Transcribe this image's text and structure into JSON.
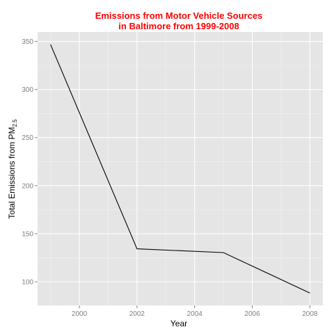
{
  "chart_data": {
    "type": "line",
    "title_line1": "Emissions from Motor Vehicle Sources",
    "title_line2": "in Baltimore from 1999-2008",
    "xlabel": "Year",
    "ylabel": {
      "main": "Total Emissions from PM",
      "subscript": "2.5"
    },
    "x": [
      1999,
      2002,
      2005,
      2008
    ],
    "series": [
      {
        "values": [
          346.8,
          134.3,
          130.4,
          88.3
        ]
      }
    ],
    "x_ticks": [
      2000,
      2002,
      2004,
      2006,
      2008
    ],
    "y_ticks": [
      100,
      150,
      200,
      250,
      300,
      350
    ],
    "xlim": [
      1998.55,
      2008.45
    ],
    "ylim": [
      75.4,
      359.8
    ],
    "grid": true,
    "legend": "none",
    "colors": {
      "panel": "#e5e5e5",
      "grid_major": "#ffffff",
      "grid_minor": "#f2f2f2",
      "line": "#000000",
      "title": "#ff0000",
      "tick_label": "#7f7f7f"
    }
  }
}
